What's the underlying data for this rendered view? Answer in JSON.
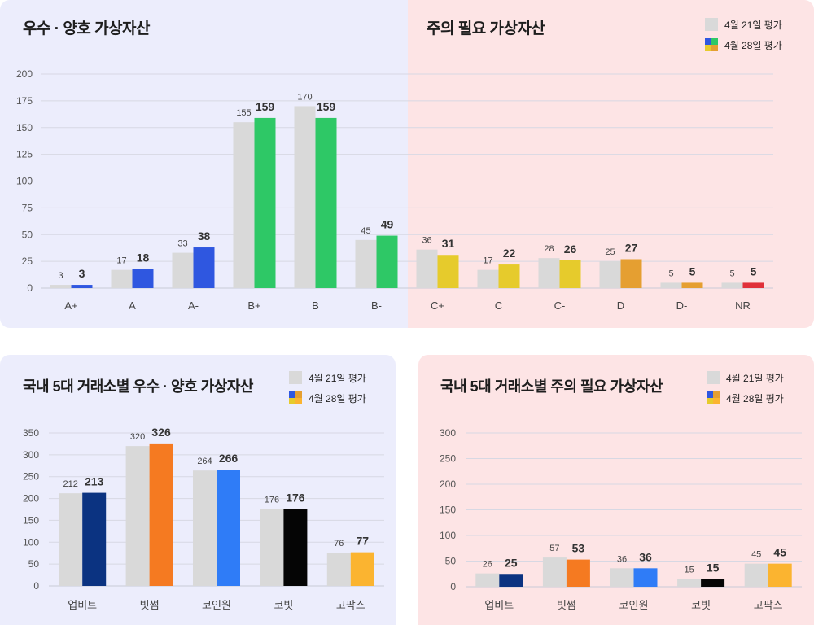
{
  "legend": {
    "old": "4월 21일 평가",
    "new": "4월 28일 평가"
  },
  "colors": {
    "old_bar": "#d9d9d9",
    "grid": "#d7d8e3"
  },
  "top": {
    "title_left": "우수 · 양호 가상자산",
    "title_right": "주의 필요 가상자산"
  },
  "bottom_left": {
    "title": "국내 5대 거래소별 우수 · 양호 가상자산"
  },
  "bottom_right": {
    "title": "국내 5대 거래소별 주의 필요 가상자산"
  },
  "chart_data": [
    {
      "id": "grades",
      "type": "bar",
      "title": "",
      "categories": [
        "A+",
        "A",
        "A-",
        "B+",
        "B",
        "B-",
        "C+",
        "C",
        "C-",
        "D",
        "D-",
        "NR"
      ],
      "series": [
        {
          "name": "4월 21일 평가",
          "values": [
            3,
            17,
            33,
            155,
            170,
            45,
            36,
            17,
            28,
            25,
            5,
            5
          ]
        },
        {
          "name": "4월 28일 평가",
          "values": [
            3,
            18,
            38,
            159,
            159,
            49,
            31,
            22,
            26,
            27,
            5,
            5
          ]
        }
      ],
      "new_colors": [
        "#2f57e0",
        "#2f57e0",
        "#2f57e0",
        "#2ec866",
        "#2ec866",
        "#2ec866",
        "#e6cb2c",
        "#e6cb2c",
        "#e6cb2c",
        "#e59f31",
        "#e59f31",
        "#e0303a"
      ],
      "ylim": [
        0,
        200
      ],
      "yticks": [
        0,
        25,
        50,
        75,
        100,
        125,
        150,
        175,
        200
      ],
      "grid": true,
      "legend_position": "top-right"
    },
    {
      "id": "exchanges_good",
      "type": "bar",
      "title": "국내 5대 거래소별 우수 · 양호 가상자산",
      "categories": [
        "업비트",
        "빗썸",
        "코인원",
        "코빗",
        "고팍스"
      ],
      "series": [
        {
          "name": "4월 21일 평가",
          "values": [
            212,
            320,
            264,
            176,
            76
          ]
        },
        {
          "name": "4월 28일 평가",
          "values": [
            213,
            326,
            266,
            176,
            77
          ]
        }
      ],
      "new_colors": [
        "#0b3381",
        "#f57a21",
        "#2f7cf7",
        "#050505",
        "#fbb430"
      ],
      "ylim": [
        0,
        350
      ],
      "yticks": [
        0,
        50,
        100,
        150,
        200,
        250,
        300,
        350
      ],
      "grid": true,
      "legend_position": "top-right"
    },
    {
      "id": "exchanges_caution",
      "type": "bar",
      "title": "국내 5대 거래소별 주의 필요 가상자산",
      "categories": [
        "업비트",
        "빗썸",
        "코인원",
        "코빗",
        "고팍스"
      ],
      "series": [
        {
          "name": "4월 21일 평가",
          "values": [
            26,
            57,
            36,
            15,
            45
          ]
        },
        {
          "name": "4월 28일 평가",
          "values": [
            25,
            53,
            36,
            15,
            45
          ]
        }
      ],
      "new_colors": [
        "#0b3381",
        "#f57a21",
        "#2f7cf7",
        "#050505",
        "#fbb430"
      ],
      "ylim": [
        0,
        300
      ],
      "yticks": [
        0,
        50,
        100,
        150,
        200,
        250,
        300
      ],
      "grid": true,
      "legend_position": "top-right"
    }
  ]
}
